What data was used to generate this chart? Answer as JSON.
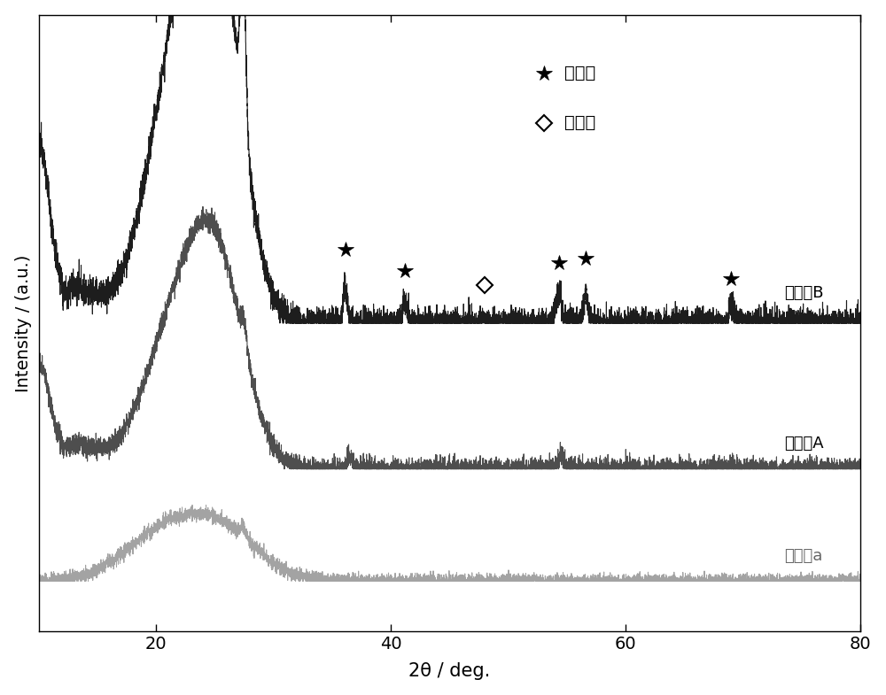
{
  "xlabel": "2θ / deg.",
  "ylabel": "Intensity / (a.u.)",
  "xlim": [
    10,
    80
  ],
  "ylim": [
    -0.05,
    1.05
  ],
  "xticks": [
    20,
    40,
    60,
    80
  ],
  "title": "",
  "legend_rutile_symbol": "★",
  "legend_rutile_text": "金红石",
  "legend_anatase_symbol": "◇",
  "legend_anatase_text": "锐钓矿",
  "label_B": "催化剂B",
  "label_A": "催化剂A",
  "label_a": "催化剂a",
  "curve_B_color": "#111111",
  "curve_A_color": "#444444",
  "curve_a_color": "#999999",
  "background_color": "#ffffff",
  "seed": 12345
}
